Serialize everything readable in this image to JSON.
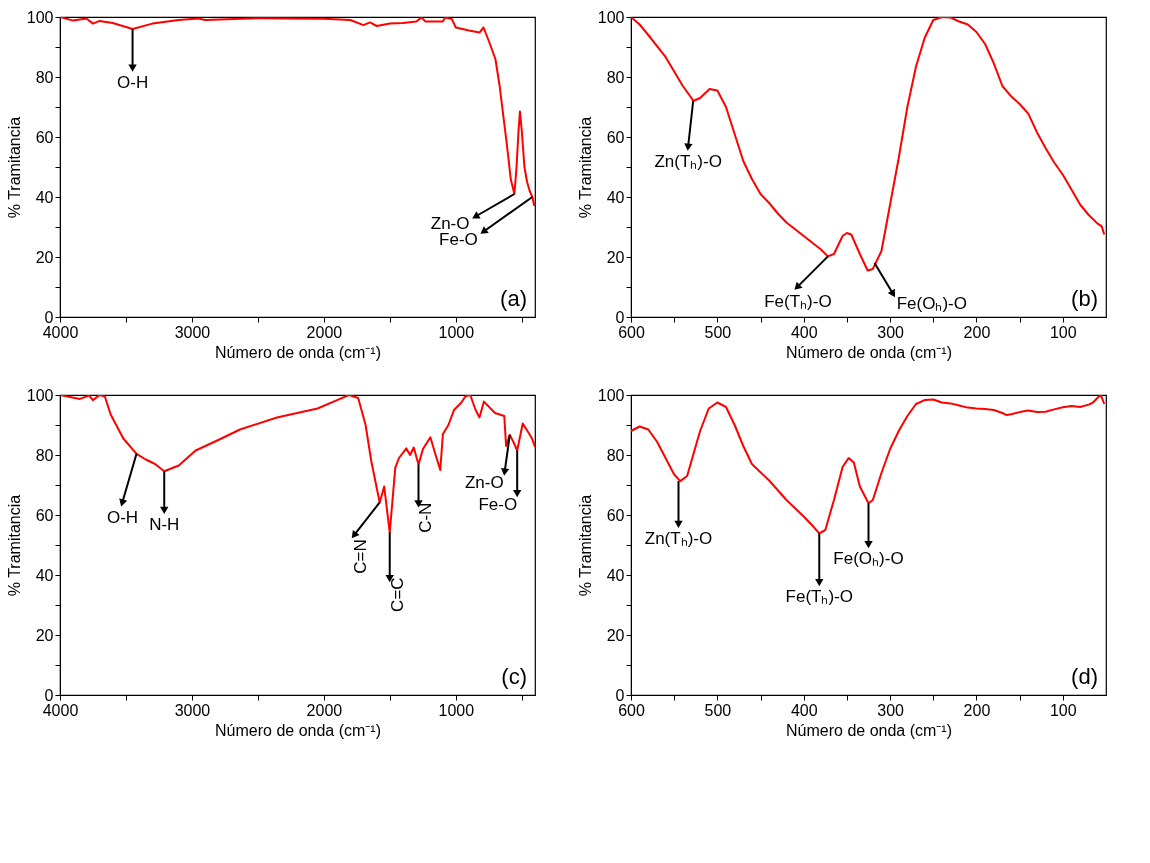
{
  "chart_data": [
    {
      "type": "line",
      "xlabel": "Número de onda (cm⁻¹)",
      "ylabel": "% Tramitancia",
      "xlim": [
        4000,
        400
      ],
      "ylim": [
        0,
        100
      ],
      "xticks": [
        4000,
        {
          "value": 3500,
          "label": null
        },
        3000,
        {
          "value": 2500,
          "label": null
        },
        2000,
        {
          "value": 1500,
          "label": null
        },
        1000,
        {
          "value": 500,
          "label": null
        }
      ],
      "yticks": [
        0,
        {
          "value": 10,
          "label": null
        },
        20,
        {
          "value": 30,
          "label": null
        },
        40,
        {
          "value": 50,
          "label": null
        },
        60,
        {
          "value": 70,
          "label": null
        },
        80,
        {
          "value": 90,
          "label": null
        },
        100
      ],
      "grid": false,
      "legend": false,
      "series": [
        {
          "color": "#ff0000",
          "x": [
            4000,
            3900,
            3800,
            3750,
            3700,
            3600,
            3450,
            3300,
            3100,
            2950,
            2900,
            2500,
            2000,
            1800,
            1700,
            1650,
            1600,
            1500,
            1400,
            1300,
            1260,
            1230,
            1100,
            1080,
            1030,
            1000,
            900,
            821,
            790,
            750,
            700,
            668,
            640,
            612,
            584,
            556,
            540,
            525,
            514,
            500,
            480,
            460,
            440,
            420,
            405
          ],
          "values": [
            100,
            98.8,
            99.5,
            97.8,
            98.7,
            98,
            96,
            97.8,
            99,
            99.5,
            99,
            99.6,
            99.4,
            99,
            97.3,
            98.2,
            97,
            97.8,
            98,
            98.5,
            99.8,
            98.5,
            98.5,
            99.8,
            99.3,
            96.5,
            95.5,
            94.8,
            96.5,
            92,
            86,
            77,
            67,
            57,
            46,
            41,
            50,
            62,
            68.5,
            62,
            50,
            45,
            42,
            40,
            37
          ]
        }
      ],
      "annotations": [
        {
          "text": "O-H",
          "x": 3450,
          "y": 96
        },
        {
          "text": "Zn-O",
          "x": 556,
          "y": 41
        },
        {
          "text": "Fe-O",
          "x": 420,
          "y": 40
        },
        "(a)"
      ]
    },
    {
      "type": "line",
      "xlabel": "Número de onda (cm⁻¹)",
      "ylabel": "% Tramitancia",
      "xlim": [
        600,
        50
      ],
      "ylim": [
        0,
        100
      ],
      "xticks": [
        600,
        {
          "value": 550,
          "label": null
        },
        500,
        {
          "value": 450,
          "label": null
        },
        400,
        {
          "value": 350,
          "label": null
        },
        300,
        {
          "value": 250,
          "label": null
        },
        200,
        {
          "value": 150,
          "label": null
        },
        100
      ],
      "yticks": [
        0,
        {
          "value": 10,
          "label": null
        },
        20,
        {
          "value": 30,
          "label": null
        },
        40,
        {
          "value": 50,
          "label": null
        },
        60,
        {
          "value": 70,
          "label": null
        },
        80,
        {
          "value": 90,
          "label": null
        },
        100
      ],
      "grid": false,
      "legend": false,
      "series": [
        {
          "color": "#ff0000",
          "x": [
            600,
            590,
            580,
            560,
            540,
            530,
            528,
            520,
            509,
            500,
            490,
            480,
            470,
            460,
            450,
            440,
            430,
            420,
            400,
            380,
            372,
            365,
            355,
            350,
            345,
            335,
            326,
            320,
            310,
            300,
            290,
            280,
            270,
            260,
            250,
            240,
            230,
            220,
            210,
            200,
            190,
            180,
            170,
            160,
            150,
            140,
            130,
            120,
            110,
            100,
            90,
            80,
            70,
            60,
            55,
            52
          ],
          "values": [
            100,
            97.5,
            94,
            86.7,
            77,
            73,
            72,
            73,
            76,
            75.5,
            70,
            61,
            52,
            46,
            41,
            38,
            34.5,
            31.5,
            27,
            22.5,
            20.2,
            21,
            27,
            28,
            27.5,
            21,
            15.5,
            16,
            22,
            37.5,
            53,
            70,
            83.5,
            93,
            99,
            100,
            99.8,
            98.5,
            97.5,
            95,
            91,
            84.6,
            77,
            73.6,
            71,
            67.8,
            61.6,
            56.3,
            51.5,
            47.4,
            42.5,
            37.5,
            34,
            31.2,
            30.2,
            27.5
          ]
        }
      ],
      "annotations": [
        {
          "text": "Zn(Tₕ)-O",
          "x": 528,
          "y": 72
        },
        {
          "text": "Fe(Tₕ)-O",
          "x": 372,
          "y": 20.2
        },
        {
          "text": "Fe(Oₕ)-O",
          "x": 318,
          "y": 18
        },
        "(b)"
      ]
    },
    {
      "type": "line",
      "xlabel": "Número de onda (cm⁻¹)",
      "ylabel": "% Tramitancia",
      "xlim": [
        4000,
        400
      ],
      "ylim": [
        0,
        100
      ],
      "xticks": [
        4000,
        {
          "value": 3500,
          "label": null
        },
        3000,
        {
          "value": 2500,
          "label": null
        },
        2000,
        {
          "value": 1500,
          "label": null
        },
        1000,
        {
          "value": 500,
          "label": null
        }
      ],
      "yticks": [
        0,
        {
          "value": 10,
          "label": null
        },
        20,
        {
          "value": 30,
          "label": null
        },
        40,
        {
          "value": 50,
          "label": null
        },
        60,
        {
          "value": 70,
          "label": null
        },
        80,
        {
          "value": 90,
          "label": null
        },
        100
      ],
      "grid": false,
      "legend": false,
      "series": [
        {
          "color": "#ff0000",
          "x": [
            4000,
            3850,
            3780,
            3750,
            3700,
            3660,
            3616,
            3520,
            3420,
            3350,
            3280,
            3210,
            3100,
            2972,
            2800,
            2636,
            2356,
            2048,
            1900,
            1810,
            1740,
            1684,
            1641,
            1599,
            1577,
            1543,
            1501,
            1459,
            1431,
            1375,
            1347,
            1319,
            1283,
            1249,
            1193,
            1160,
            1118,
            1098,
            1056,
            1014,
            958,
            927,
            891,
            850,
            821,
            787,
            703,
            633,
            619,
            591,
            560,
            535,
            493,
            450,
            423,
            400
          ],
          "values": [
            100,
            98.7,
            99.8,
            98.3,
            100,
            99.5,
            93.5,
            85.5,
            80.4,
            78.5,
            77,
            74.6,
            76.5,
            81.5,
            85,
            88.5,
            92.5,
            95.5,
            98.3,
            100,
            99,
            90,
            78,
            68.9,
            64.2,
            69.5,
            54.2,
            75.7,
            79,
            82.2,
            80,
            82.5,
            76.8,
            82,
            85.9,
            81,
            75,
            87,
            90,
            95,
            97.5,
            99.6,
            100,
            95,
            92.5,
            97.8,
            94,
            93,
            83,
            86.7,
            84,
            81.5,
            90.5,
            87.5,
            85.5,
            82.7
          ]
        }
      ],
      "annotations": [
        {
          "text": "O-H",
          "x": 3420,
          "y": 80.4
        },
        {
          "text": "N-H",
          "x": 3210,
          "y": 74.6
        },
        {
          "text": "C=N",
          "x": 1577,
          "y": 64.2
        },
        {
          "text": "C=C",
          "x": 1501,
          "y": 54.2
        },
        {
          "text": "C-N",
          "x": 1283,
          "y": 76.8
        },
        {
          "text": "Zn-O",
          "x": 591,
          "y": 86.7
        },
        {
          "text": "Fe-O",
          "x": 535,
          "y": 81.5
        },
        "(c)"
      ]
    },
    {
      "type": "line",
      "xlabel": "Número de onda (cm⁻¹)",
      "ylabel": "% Tramitancia",
      "xlim": [
        600,
        50
      ],
      "ylim": [
        0,
        100
      ],
      "xticks": [
        600,
        {
          "value": 550,
          "label": null
        },
        500,
        {
          "value": 450,
          "label": null
        },
        400,
        {
          "value": 350,
          "label": null
        },
        300,
        {
          "value": 250,
          "label": null
        },
        200,
        {
          "value": 150,
          "label": null
        },
        100
      ],
      "yticks": [
        0,
        {
          "value": 10,
          "label": null
        },
        20,
        {
          "value": 30,
          "label": null
        },
        40,
        {
          "value": 50,
          "label": null
        },
        60,
        {
          "value": 70,
          "label": null
        },
        80,
        {
          "value": 90,
          "label": null
        },
        100
      ],
      "grid": false,
      "legend": false,
      "series": [
        {
          "color": "#ff0000",
          "x": [
            600,
            590,
            580,
            570,
            560,
            550,
            543,
            535,
            530,
            520,
            510,
            500,
            490,
            480,
            470,
            460,
            440,
            420,
            400,
            390,
            382,
            375,
            365,
            355,
            348,
            342,
            335,
            325,
            320,
            310,
            300,
            290,
            280,
            270,
            260,
            250,
            240,
            230,
            220,
            210,
            200,
            190,
            180,
            170,
            165,
            160,
            150,
            140,
            130,
            120,
            110,
            100,
            90,
            80,
            70,
            65,
            60,
            56,
            52
          ],
          "values": [
            88,
            89.5,
            88.5,
            84.5,
            79,
            73.5,
            71.3,
            73,
            78,
            88,
            95.5,
            97.5,
            96,
            90,
            83,
            77,
            71.5,
            65,
            59.5,
            56.5,
            53.9,
            55,
            65,
            76,
            79,
            77.5,
            69.5,
            63.9,
            65,
            74,
            82,
            88,
            93,
            97,
            98.3,
            98.5,
            97.5,
            97.2,
            96.5,
            95.8,
            95.5,
            95.3,
            95,
            94,
            93.3,
            93.6,
            94.3,
            94.8,
            94.3,
            94.4,
            95.2,
            95.9,
            96.3,
            96,
            96.8,
            97.5,
            99,
            100,
            97
          ]
        }
      ],
      "annotations": [
        {
          "text": "Zn(Tₕ)-O",
          "x": 545,
          "y": 71.3
        },
        {
          "text": "Fe(Tₕ)-O",
          "x": 382,
          "y": 53.9
        },
        {
          "text": "Fe(Oₕ)-O",
          "x": 325,
          "y": 63.9
        },
        "(d)"
      ]
    }
  ]
}
